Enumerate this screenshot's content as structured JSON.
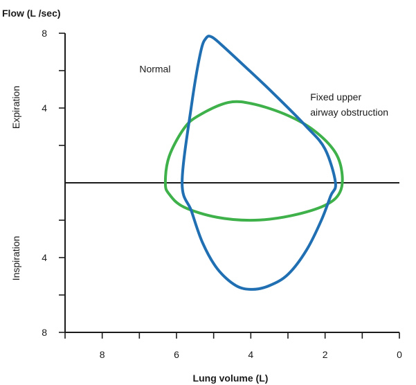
{
  "chart_data": {
    "type": "line",
    "y_title": "Flow (L /sec)",
    "x_title": "Lung volume (L)",
    "expiration_label": "Expiration",
    "inspiration_label": "Inspiration",
    "x_range": [
      9,
      0
    ],
    "flow_range": [
      -8,
      8
    ],
    "x_ticks": [
      {
        "value": 9,
        "label": ""
      },
      {
        "value": 8,
        "label": "8"
      },
      {
        "value": 7,
        "label": ""
      },
      {
        "value": 6,
        "label": "6"
      },
      {
        "value": 5,
        "label": ""
      },
      {
        "value": 4,
        "label": "4"
      },
      {
        "value": 3,
        "label": ""
      },
      {
        "value": 2,
        "label": "2"
      },
      {
        "value": 1,
        "label": ""
      },
      {
        "value": 0,
        "label": "0"
      }
    ],
    "y_ticks": [
      {
        "value": 8,
        "label": "8"
      },
      {
        "value": 6,
        "label": ""
      },
      {
        "value": 4,
        "label": "4"
      },
      {
        "value": 2,
        "label": ""
      },
      {
        "value": -2,
        "label": ""
      },
      {
        "value": -4,
        "label": "4"
      },
      {
        "value": -6,
        "label": ""
      },
      {
        "value": -8,
        "label": "8"
      }
    ],
    "series": [
      {
        "name": "Normal",
        "color": "#1f6fb2",
        "points": [
          [
            5.85,
            0
          ],
          [
            5.6,
            4.1
          ],
          [
            5.35,
            7.0
          ],
          [
            5.2,
            7.75
          ],
          [
            5.05,
            7.8
          ],
          [
            4.8,
            7.4
          ],
          [
            4.2,
            6.3
          ],
          [
            3.4,
            4.8
          ],
          [
            2.5,
            3.0
          ],
          [
            2.0,
            1.8
          ],
          [
            1.72,
            0
          ],
          [
            1.85,
            -0.7
          ],
          [
            2.1,
            -2.0
          ],
          [
            2.5,
            -3.6
          ],
          [
            3.0,
            -4.9
          ],
          [
            3.5,
            -5.5
          ],
          [
            3.95,
            -5.7
          ],
          [
            4.4,
            -5.5
          ],
          [
            4.9,
            -4.6
          ],
          [
            5.3,
            -3.2
          ],
          [
            5.6,
            -1.5
          ],
          [
            5.85,
            0
          ]
        ]
      },
      {
        "name": "Fixed upper airway obstruction",
        "color": "#3fb14a",
        "points": [
          [
            6.3,
            0
          ],
          [
            6.2,
            1.4
          ],
          [
            5.8,
            2.9
          ],
          [
            5.4,
            3.6
          ],
          [
            4.6,
            4.3
          ],
          [
            3.9,
            4.2
          ],
          [
            3.0,
            3.6
          ],
          [
            2.3,
            2.8
          ],
          [
            1.75,
            1.7
          ],
          [
            1.55,
            0.6
          ],
          [
            1.6,
            -0.5
          ],
          [
            2.0,
            -1.2
          ],
          [
            2.9,
            -1.75
          ],
          [
            3.9,
            -2.0
          ],
          [
            4.9,
            -1.85
          ],
          [
            5.8,
            -1.3
          ],
          [
            6.2,
            -0.6
          ],
          [
            6.3,
            0
          ]
        ]
      }
    ],
    "annotations": [
      {
        "text": "Normal",
        "x": 7.0,
        "flow": 5.9
      },
      {
        "text": "Fixed upper",
        "x": 2.4,
        "flow": 4.4
      },
      {
        "text": "airway obstruction",
        "x": 2.4,
        "flow": 3.6
      }
    ]
  }
}
